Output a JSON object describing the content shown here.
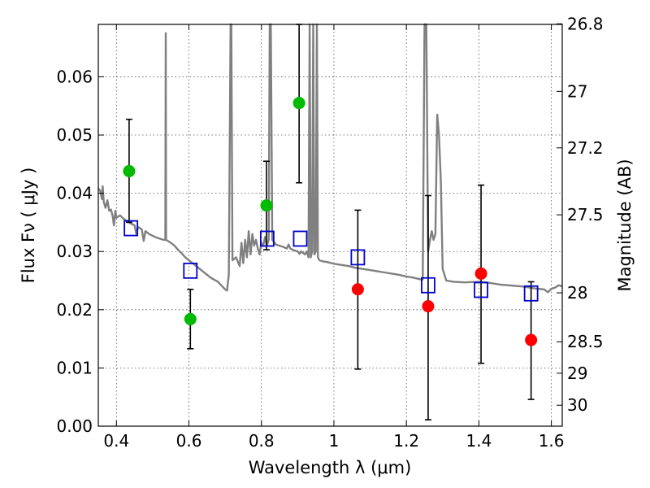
{
  "chart_data": {
    "type": "scatter",
    "title": "",
    "xlabel": "Wavelength  λ (μm)",
    "ylabel": "Flux  Fν  ( μJy )",
    "y2label": "Magnitude (AB)",
    "xlim": [
      0.35,
      1.63
    ],
    "ylim": [
      0.0,
      0.069
    ],
    "xticks": [
      0.4,
      0.6,
      0.8,
      1.0,
      1.2,
      1.4,
      1.6
    ],
    "xtick_labels": [
      "0.4",
      "0.6",
      "0.8",
      "1",
      "1.2",
      "1.4",
      "1.6"
    ],
    "yticks": [
      0.0,
      0.01,
      0.02,
      0.03,
      0.04,
      0.05,
      0.06
    ],
    "ytick_labels": [
      "0.00",
      "0.01",
      "0.02",
      "0.03",
      "0.04",
      "0.05",
      "0.06"
    ],
    "y2ticks": [
      {
        "label": "26.8",
        "flux": 0.0691
      },
      {
        "label": "27",
        "flux": 0.0575
      },
      {
        "label": "27.2",
        "flux": 0.0478
      },
      {
        "label": "27.5",
        "flux": 0.0363
      },
      {
        "label": "28",
        "flux": 0.0229
      },
      {
        "label": "28.5",
        "flux": 0.0145
      },
      {
        "label": "29",
        "flux": 0.0091
      },
      {
        "label": "30",
        "flux": 0.0036
      }
    ],
    "grid": true,
    "colors": {
      "model": "#808080",
      "green_points": "#00bb00",
      "red_points": "#ff0000",
      "squares": "#0000cc",
      "errorbars": "#000000"
    },
    "series": [
      {
        "kind": "errorbar",
        "color": "#00bb00",
        "points": [
          {
            "x": 0.435,
            "y": 0.0438,
            "ylow": 0.035,
            "yhigh": 0.0527
          },
          {
            "x": 0.604,
            "y": 0.0184,
            "ylow": 0.0133,
            "yhigh": 0.0235
          },
          {
            "x": 0.814,
            "y": 0.0379,
            "ylow": 0.0303,
            "yhigh": 0.0455
          },
          {
            "x": 0.904,
            "y": 0.0555,
            "ylow": 0.0418,
            "yhigh": 0.069
          }
        ]
      },
      {
        "kind": "errorbar",
        "color": "#ff0000",
        "points": [
          {
            "x": 1.066,
            "y": 0.0235,
            "ylow": 0.0098,
            "yhigh": 0.0371
          },
          {
            "x": 1.26,
            "y": 0.0206,
            "ylow": 0.0011,
            "yhigh": 0.0396
          },
          {
            "x": 1.406,
            "y": 0.0262,
            "ylow": 0.0108,
            "yhigh": 0.0414
          },
          {
            "x": 1.544,
            "y": 0.0148,
            "ylow": 0.0046,
            "yhigh": 0.0248
          }
        ]
      },
      {
        "kind": "open-square",
        "color": "#0000cc",
        "points": [
          {
            "x": 0.44,
            "y": 0.034
          },
          {
            "x": 0.604,
            "y": 0.0267
          },
          {
            "x": 0.816,
            "y": 0.0322
          },
          {
            "x": 0.907,
            "y": 0.0322
          },
          {
            "x": 1.066,
            "y": 0.029
          },
          {
            "x": 1.26,
            "y": 0.0242
          },
          {
            "x": 1.406,
            "y": 0.0234
          },
          {
            "x": 1.544,
            "y": 0.0228
          }
        ]
      },
      {
        "kind": "line",
        "color": "#808080",
        "points": [
          [
            0.35,
            0.0408
          ],
          [
            0.355,
            0.0405
          ],
          [
            0.36,
            0.039
          ],
          [
            0.362,
            0.0412
          ],
          [
            0.365,
            0.0385
          ],
          [
            0.37,
            0.0375
          ],
          [
            0.375,
            0.0388
          ],
          [
            0.38,
            0.037
          ],
          [
            0.385,
            0.0372
          ],
          [
            0.39,
            0.036
          ],
          [
            0.393,
            0.0345
          ],
          [
            0.397,
            0.037
          ],
          [
            0.4,
            0.0358
          ],
          [
            0.41,
            0.0362
          ],
          [
            0.42,
            0.0356
          ],
          [
            0.43,
            0.0352
          ],
          [
            0.44,
            0.0348
          ],
          [
            0.45,
            0.0345
          ],
          [
            0.455,
            0.033
          ],
          [
            0.46,
            0.0342
          ],
          [
            0.47,
            0.0338
          ],
          [
            0.475,
            0.0318
          ],
          [
            0.48,
            0.0335
          ],
          [
            0.49,
            0.033
          ],
          [
            0.5,
            0.0327
          ],
          [
            0.51,
            0.0324
          ],
          [
            0.52,
            0.0322
          ],
          [
            0.53,
            0.032
          ],
          [
            0.535,
            0.032
          ],
          [
            0.536,
            0.0675
          ],
          [
            0.537,
            0.032
          ],
          [
            0.55,
            0.0315
          ],
          [
            0.56,
            0.031
          ],
          [
            0.57,
            0.0303
          ],
          [
            0.58,
            0.0297
          ],
          [
            0.59,
            0.029
          ],
          [
            0.6,
            0.0285
          ],
          [
            0.62,
            0.0275
          ],
          [
            0.64,
            0.0265
          ],
          [
            0.66,
            0.0255
          ],
          [
            0.68,
            0.0248
          ],
          [
            0.7,
            0.0235
          ],
          [
            0.705,
            0.0233
          ],
          [
            0.71,
            0.026
          ],
          [
            0.715,
            0.069
          ],
          [
            0.717,
            0.069
          ],
          [
            0.72,
            0.0285
          ],
          [
            0.73,
            0.029
          ],
          [
            0.74,
            0.0275
          ],
          [
            0.745,
            0.0315
          ],
          [
            0.75,
            0.028
          ],
          [
            0.755,
            0.032
          ],
          [
            0.76,
            0.029
          ],
          [
            0.765,
            0.0335
          ],
          [
            0.77,
            0.0295
          ],
          [
            0.775,
            0.033
          ],
          [
            0.78,
            0.031
          ],
          [
            0.785,
            0.032
          ],
          [
            0.79,
            0.0305
          ],
          [
            0.795,
            0.0295
          ],
          [
            0.8,
            0.0315
          ],
          [
            0.805,
            0.031
          ],
          [
            0.81,
            0.0325
          ],
          [
            0.815,
            0.031
          ],
          [
            0.82,
            0.032
          ],
          [
            0.823,
            0.069
          ],
          [
            0.826,
            0.069
          ],
          [
            0.83,
            0.032
          ],
          [
            0.84,
            0.0312
          ],
          [
            0.85,
            0.031
          ],
          [
            0.86,
            0.0308
          ],
          [
            0.87,
            0.0305
          ],
          [
            0.875,
            0.0312
          ],
          [
            0.88,
            0.0305
          ],
          [
            0.89,
            0.0302
          ],
          [
            0.9,
            0.03
          ],
          [
            0.905,
            0.0296
          ],
          [
            0.91,
            0.03
          ],
          [
            0.92,
            0.0295
          ],
          [
            0.925,
            0.03
          ],
          [
            0.93,
            0.029
          ],
          [
            0.933,
            0.069
          ],
          [
            0.936,
            0.029
          ],
          [
            0.94,
            0.03
          ],
          [
            0.943,
            0.069
          ],
          [
            0.946,
            0.0295
          ],
          [
            0.95,
            0.03
          ],
          [
            0.953,
            0.069
          ],
          [
            0.956,
            0.029
          ],
          [
            0.96,
            0.0285
          ],
          [
            0.97,
            0.0283
          ],
          [
            0.98,
            0.0282
          ],
          [
            1.0,
            0.0279
          ],
          [
            1.02,
            0.0277
          ],
          [
            1.04,
            0.0275
          ],
          [
            1.06,
            0.0272
          ],
          [
            1.08,
            0.027
          ],
          [
            1.1,
            0.0268
          ],
          [
            1.12,
            0.0266
          ],
          [
            1.14,
            0.0264
          ],
          [
            1.16,
            0.0262
          ],
          [
            1.18,
            0.026
          ],
          [
            1.2,
            0.0257
          ],
          [
            1.22,
            0.0255
          ],
          [
            1.24,
            0.0252
          ],
          [
            1.245,
            0.0252
          ],
          [
            1.25,
            0.069
          ],
          [
            1.255,
            0.069
          ],
          [
            1.26,
            0.03
          ],
          [
            1.265,
            0.032
          ],
          [
            1.27,
            0.0335
          ],
          [
            1.275,
            0.032
          ],
          [
            1.28,
            0.033
          ],
          [
            1.285,
            0.0535
          ],
          [
            1.29,
            0.05
          ],
          [
            1.295,
            0.042
          ],
          [
            1.3,
            0.027
          ],
          [
            1.31,
            0.025
          ],
          [
            1.33,
            0.0248
          ],
          [
            1.36,
            0.0247
          ],
          [
            1.4,
            0.0248
          ],
          [
            1.42,
            0.0247
          ],
          [
            1.44,
            0.0245
          ],
          [
            1.46,
            0.0243
          ],
          [
            1.48,
            0.0242
          ],
          [
            1.5,
            0.0241
          ],
          [
            1.52,
            0.024
          ],
          [
            1.54,
            0.0238
          ],
          [
            1.56,
            0.0236
          ],
          [
            1.58,
            0.0235
          ],
          [
            1.59,
            0.023
          ],
          [
            1.6,
            0.0236
          ],
          [
            1.61,
            0.0238
          ],
          [
            1.62,
            0.0242
          ],
          [
            1.63,
            0.024
          ]
        ]
      }
    ]
  }
}
